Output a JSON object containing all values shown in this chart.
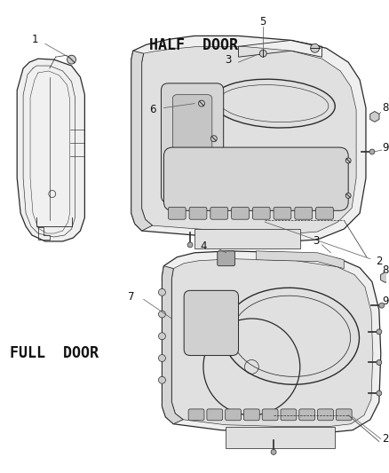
{
  "background_color": "#ffffff",
  "line_color": "#2a2a2a",
  "text_color": "#111111",
  "half_door_label": "HALF  DOOR",
  "full_door_label": "FULL  DOOR",
  "font_size": 8.5,
  "lw": 0.9
}
